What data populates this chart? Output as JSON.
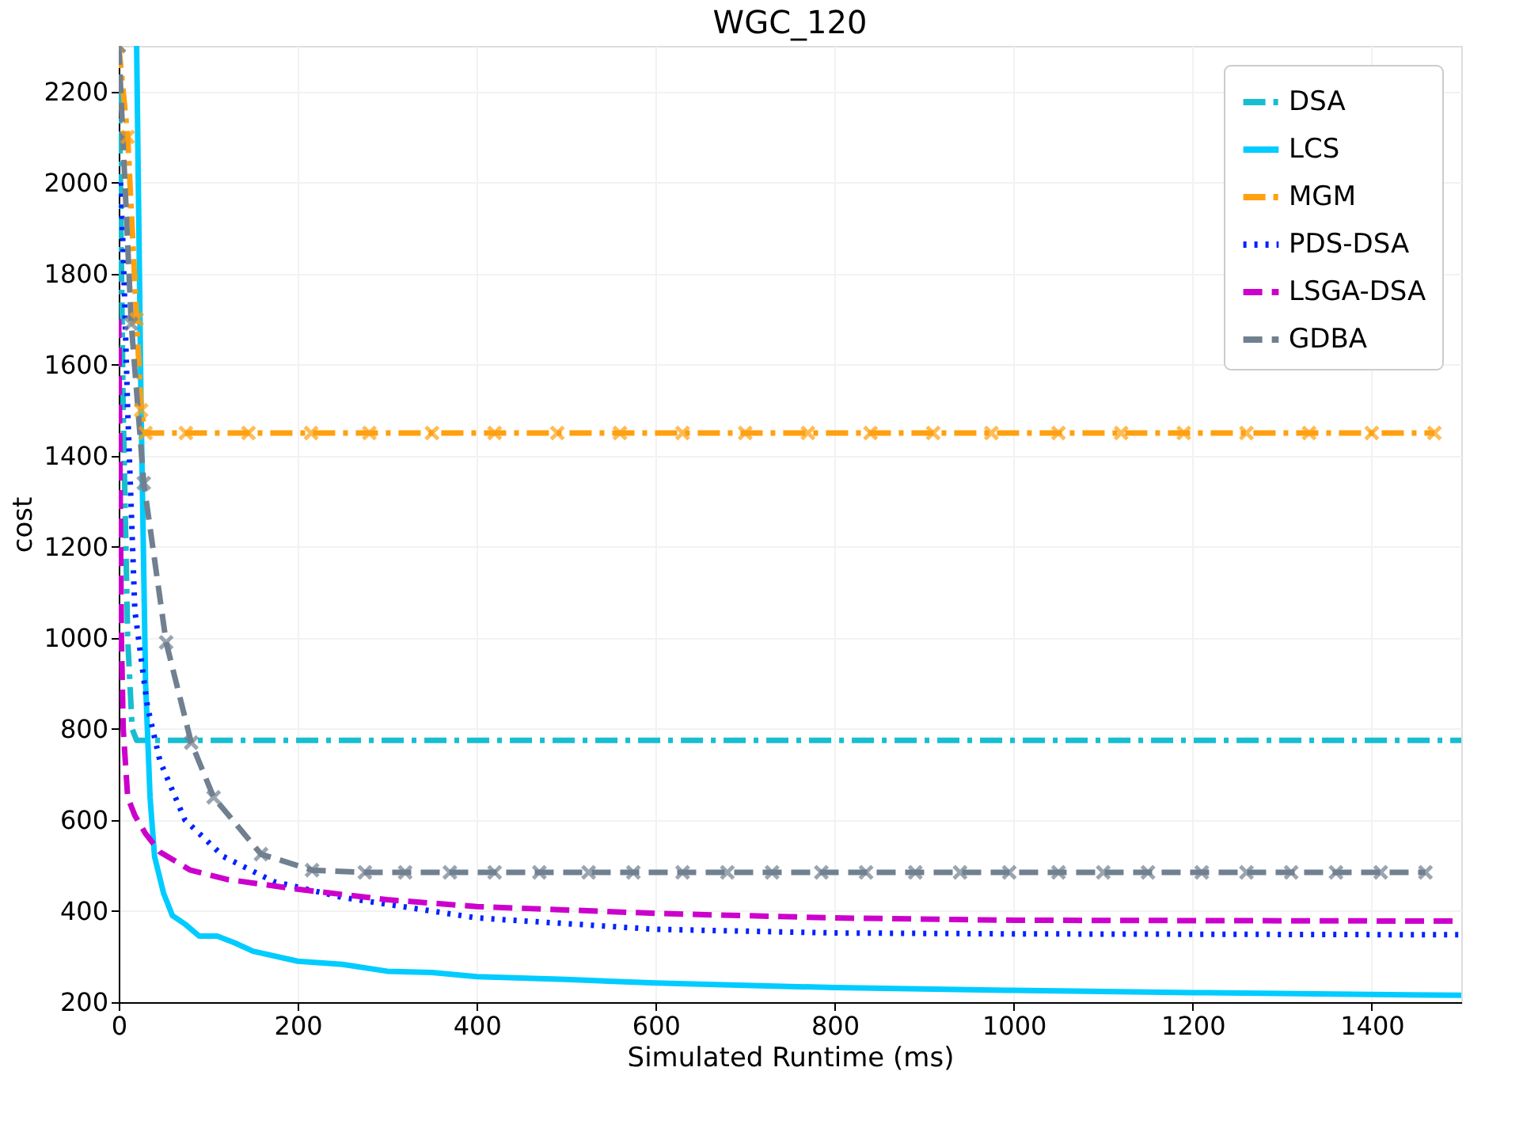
{
  "chart_data": {
    "type": "line",
    "title": "WGC_120",
    "xlabel": "Simulated Runtime (ms)",
    "ylabel": "cost",
    "xlim": [
      0,
      1500
    ],
    "ylim": [
      200,
      2300
    ],
    "xticks": [
      0,
      200,
      400,
      600,
      800,
      1000,
      1200,
      1400
    ],
    "yticks": [
      200,
      400,
      600,
      800,
      1000,
      1200,
      1400,
      1600,
      1800,
      2000,
      2200
    ],
    "grid": true,
    "legend": "top right",
    "series": [
      {
        "name": "DSA",
        "color": "#17becf",
        "line_style": "dashdot",
        "marker": "none",
        "x": [
          0,
          5,
          10,
          15,
          20,
          1500
        ],
        "values": [
          2300,
          1500,
          1000,
          800,
          775,
          775
        ]
      },
      {
        "name": "LCS",
        "color": "#00ccff",
        "line_style": "solid",
        "marker": "none",
        "x": [
          20,
          25,
          30,
          35,
          40,
          50,
          60,
          75,
          90,
          110,
          130,
          150,
          200,
          250,
          300,
          350,
          400,
          500,
          600,
          700,
          800,
          1000,
          1200,
          1500
        ],
        "values": [
          2300,
          1500,
          900,
          650,
          520,
          440,
          390,
          370,
          345,
          345,
          330,
          312,
          290,
          283,
          268,
          265,
          256,
          250,
          242,
          237,
          232,
          226,
          221,
          215
        ]
      },
      {
        "name": "MGM",
        "color": "#ffa010",
        "line_style": "dashdot",
        "marker": "cross",
        "x": [
          0,
          10,
          20,
          25,
          30,
          75,
          145,
          215,
          280,
          350,
          420,
          490,
          560,
          630,
          700,
          770,
          840,
          910,
          975,
          1050,
          1120,
          1190,
          1260,
          1330,
          1400,
          1470
        ],
        "values": [
          2300,
          2100,
          1700,
          1500,
          1450,
          1450,
          1450,
          1450,
          1450,
          1450,
          1450,
          1450,
          1450,
          1450,
          1450,
          1450,
          1450,
          1450,
          1450,
          1450,
          1450,
          1450,
          1450,
          1450,
          1450,
          1450
        ]
      },
      {
        "name": "PDS-DSA",
        "color": "#0022ff",
        "line_style": "dotted",
        "marker": "none",
        "x": [
          2,
          5,
          10,
          18,
          32,
          46,
          74,
          117,
          173,
          250,
          400,
          600,
          800,
          1000,
          1500
        ],
        "values": [
          2000,
          1850,
          1500,
          1060,
          850,
          730,
          600,
          520,
          465,
          430,
          385,
          360,
          352,
          350,
          348
        ]
      },
      {
        "name": "LSGA-DSA",
        "color": "#cc00cc",
        "line_style": "dashed",
        "marker": "none",
        "x": [
          0,
          3,
          5,
          10,
          18,
          30,
          46,
          80,
          120,
          200,
          300,
          400,
          600,
          800,
          1000,
          1500
        ],
        "values": [
          1700,
          1000,
          800,
          650,
          610,
          570,
          530,
          490,
          470,
          448,
          425,
          410,
          395,
          385,
          380,
          378
        ]
      },
      {
        "name": "GDBA",
        "color": "#708090",
        "line_style": "dashed",
        "marker": "cross",
        "x": [
          0,
          14,
          28,
          53,
          81,
          106,
          159,
          216,
          275,
          320,
          370,
          420,
          470,
          525,
          575,
          630,
          680,
          730,
          785,
          835,
          890,
          940,
          995,
          1050,
          1100,
          1150,
          1210,
          1260,
          1310,
          1360,
          1410,
          1460
        ],
        "values": [
          2300,
          1690,
          1340,
          990,
          770,
          650,
          525,
          490,
          485,
          485,
          485,
          485,
          485,
          485,
          485,
          485,
          485,
          485,
          485,
          485,
          485,
          485,
          485,
          485,
          485,
          485,
          485,
          485,
          485,
          485,
          485,
          485
        ]
      }
    ]
  }
}
